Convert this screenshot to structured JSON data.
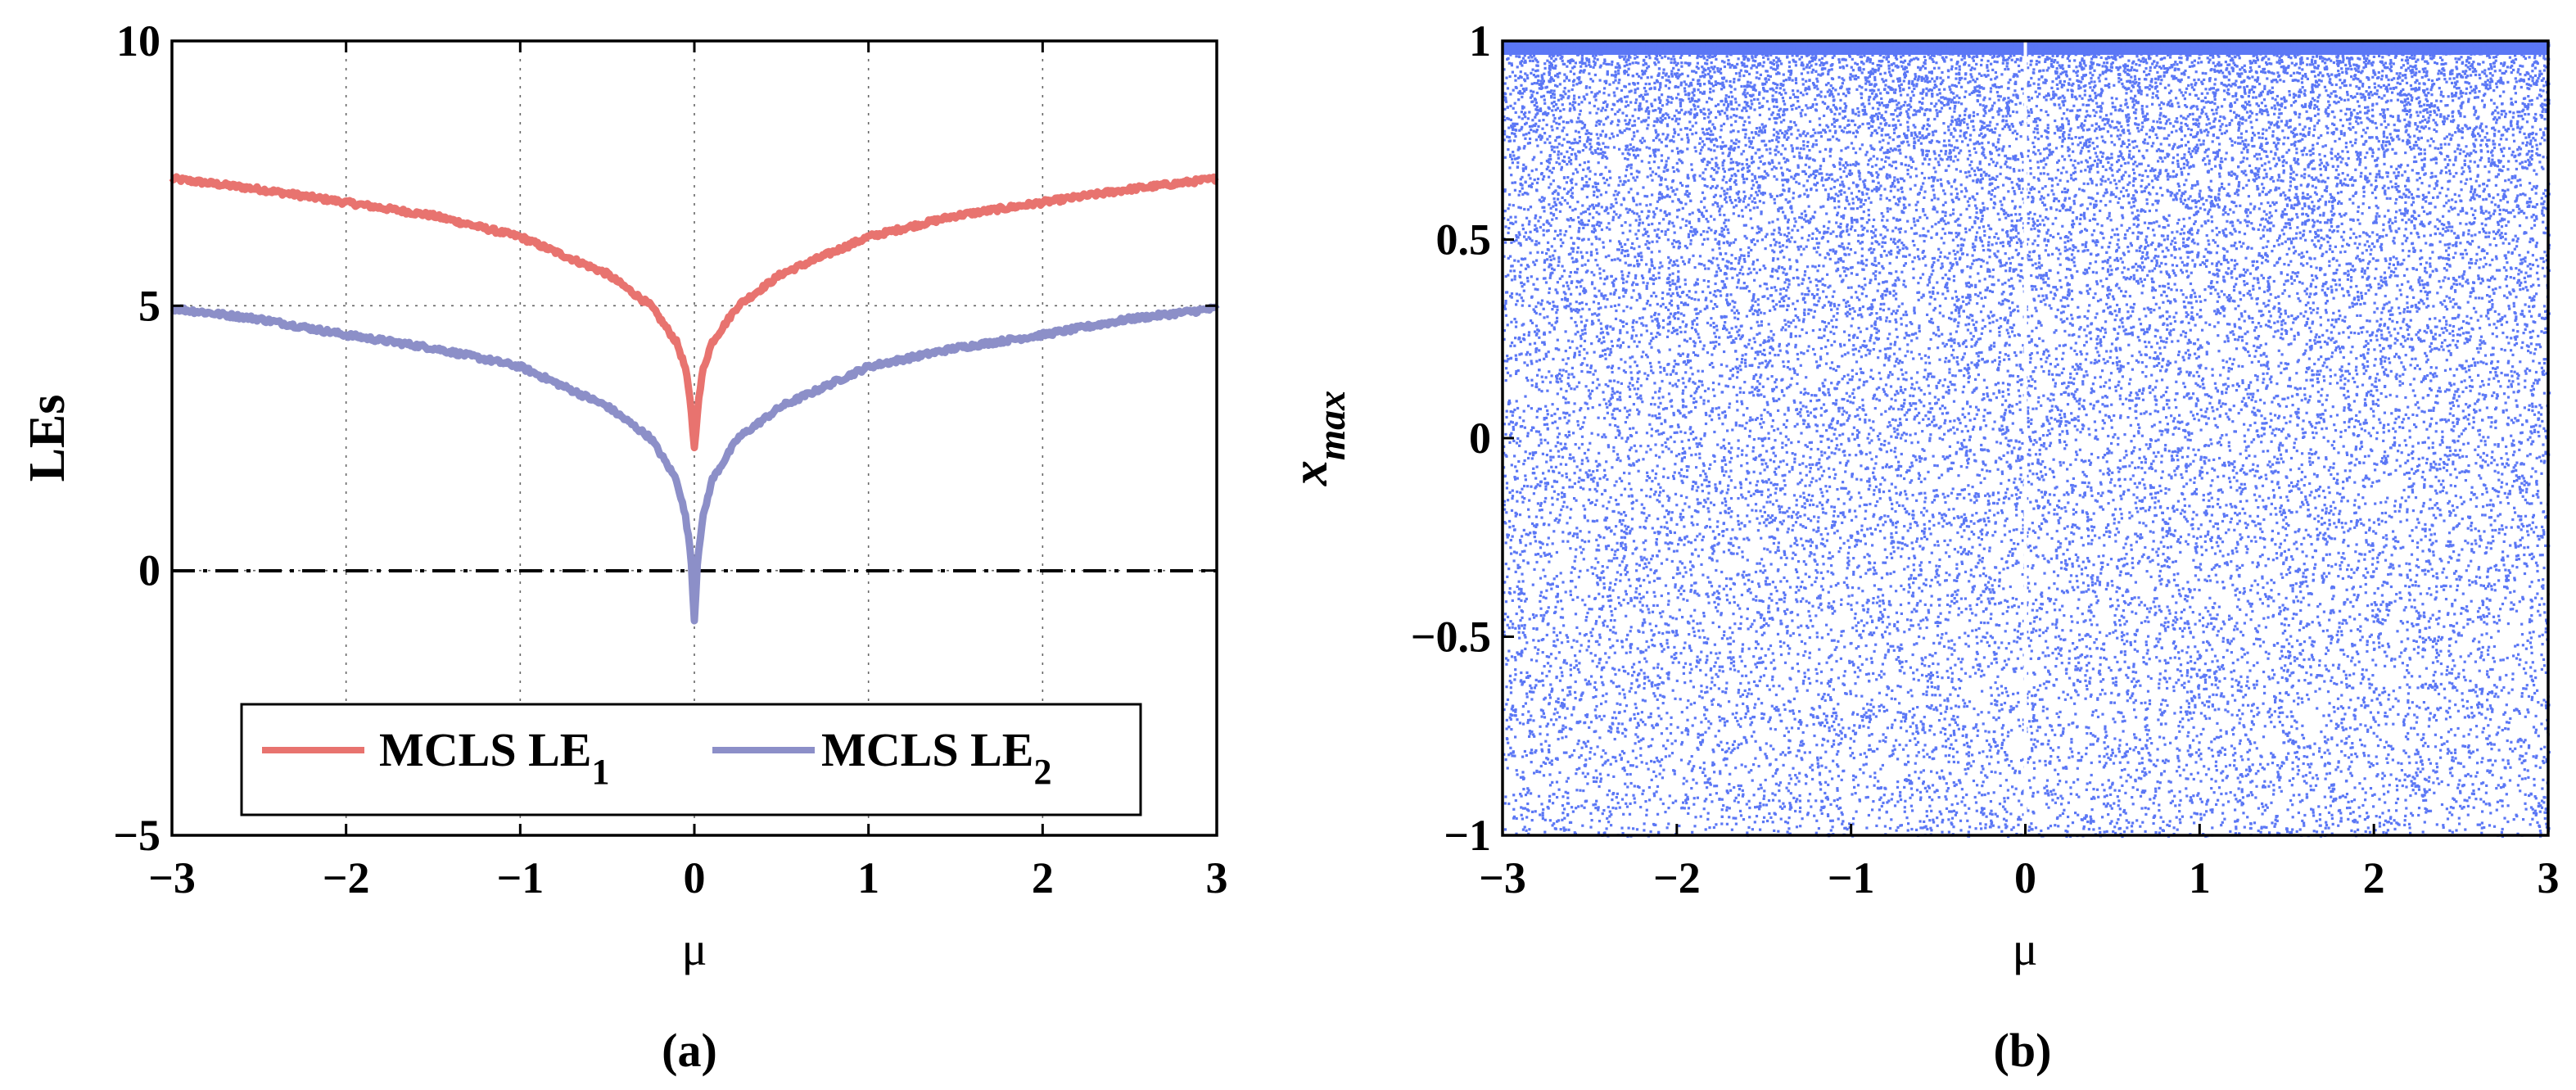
{
  "chart_data": [
    {
      "type": "line",
      "panel": "(a)",
      "caption": "(a)",
      "xlabel": "μ",
      "ylabel": "LEs",
      "xlim": [
        -3,
        3
      ],
      "ylim": [
        -5,
        10
      ],
      "xticks": [
        -3,
        -2,
        -1,
        0,
        1,
        2,
        3
      ],
      "xtick_labels": [
        "−3",
        "−2",
        "−1",
        "0",
        "1",
        "2",
        "3"
      ],
      "yticks": [
        -5,
        0,
        5,
        10
      ],
      "ytick_labels": [
        "−5",
        "0",
        "5",
        "10"
      ],
      "grid": true,
      "reference_line": {
        "y": 0,
        "style": "dash-dot",
        "color": "#000000"
      },
      "legend": {
        "placement": "bottom-center",
        "entries": [
          {
            "base": "MCLS LE",
            "sub": "1",
            "color": "#E8736F"
          },
          {
            "base": "MCLS LE",
            "sub": "2",
            "color": "#8C8FC8"
          }
        ]
      },
      "series": [
        {
          "name": "MCLS LE1",
          "color": "#E8736F",
          "x": [
            -3,
            -2.5,
            -2,
            -1.5,
            -1,
            -0.5,
            -0.25,
            -0.1,
            -0.05,
            -0.02,
            0,
            0.02,
            0.05,
            0.1,
            0.25,
            0.5,
            1,
            1.5,
            2,
            2.5,
            3
          ],
          "y": [
            7.4,
            7.2,
            6.95,
            6.7,
            6.3,
            5.6,
            5.0,
            4.3,
            3.8,
            3.1,
            2.3,
            3.1,
            3.8,
            4.3,
            5.0,
            5.6,
            6.3,
            6.7,
            6.95,
            7.2,
            7.4
          ]
        },
        {
          "name": "MCLS LE2",
          "color": "#8C8FC8",
          "x": [
            -3,
            -2.5,
            -2,
            -1.5,
            -1,
            -0.5,
            -0.25,
            -0.1,
            -0.05,
            -0.02,
            0,
            0.02,
            0.05,
            0.1,
            0.25,
            0.5,
            1,
            1.5,
            2,
            2.5,
            3
          ],
          "y": [
            4.95,
            4.75,
            4.45,
            4.2,
            3.85,
            3.1,
            2.5,
            1.7,
            1.0,
            0.3,
            -0.95,
            0.3,
            1.0,
            1.7,
            2.5,
            3.1,
            3.85,
            4.2,
            4.45,
            4.75,
            4.95
          ]
        }
      ]
    },
    {
      "type": "scatter",
      "panel": "(b)",
      "caption": "(b)",
      "xlabel": "μ",
      "ylabel": "x",
      "ylabel_sub": "max",
      "xlim": [
        -3,
        3
      ],
      "ylim": [
        -1,
        1
      ],
      "xticks": [
        -3,
        -2,
        -1,
        0,
        1,
        2,
        3
      ],
      "xtick_labels": [
        "−3",
        "−2",
        "−1",
        "0",
        "1",
        "2",
        "3"
      ],
      "yticks": [
        -1,
        -0.5,
        0,
        0.5,
        1
      ],
      "ytick_labels": [
        "−1",
        "−0.5",
        "0",
        "0.5",
        "1"
      ],
      "grid": false,
      "series": [
        {
          "name": "x_max",
          "color": "#5B77F5",
          "description_of_distribution": "dense near x_max=1, sparser toward -1"
        }
      ]
    }
  ]
}
